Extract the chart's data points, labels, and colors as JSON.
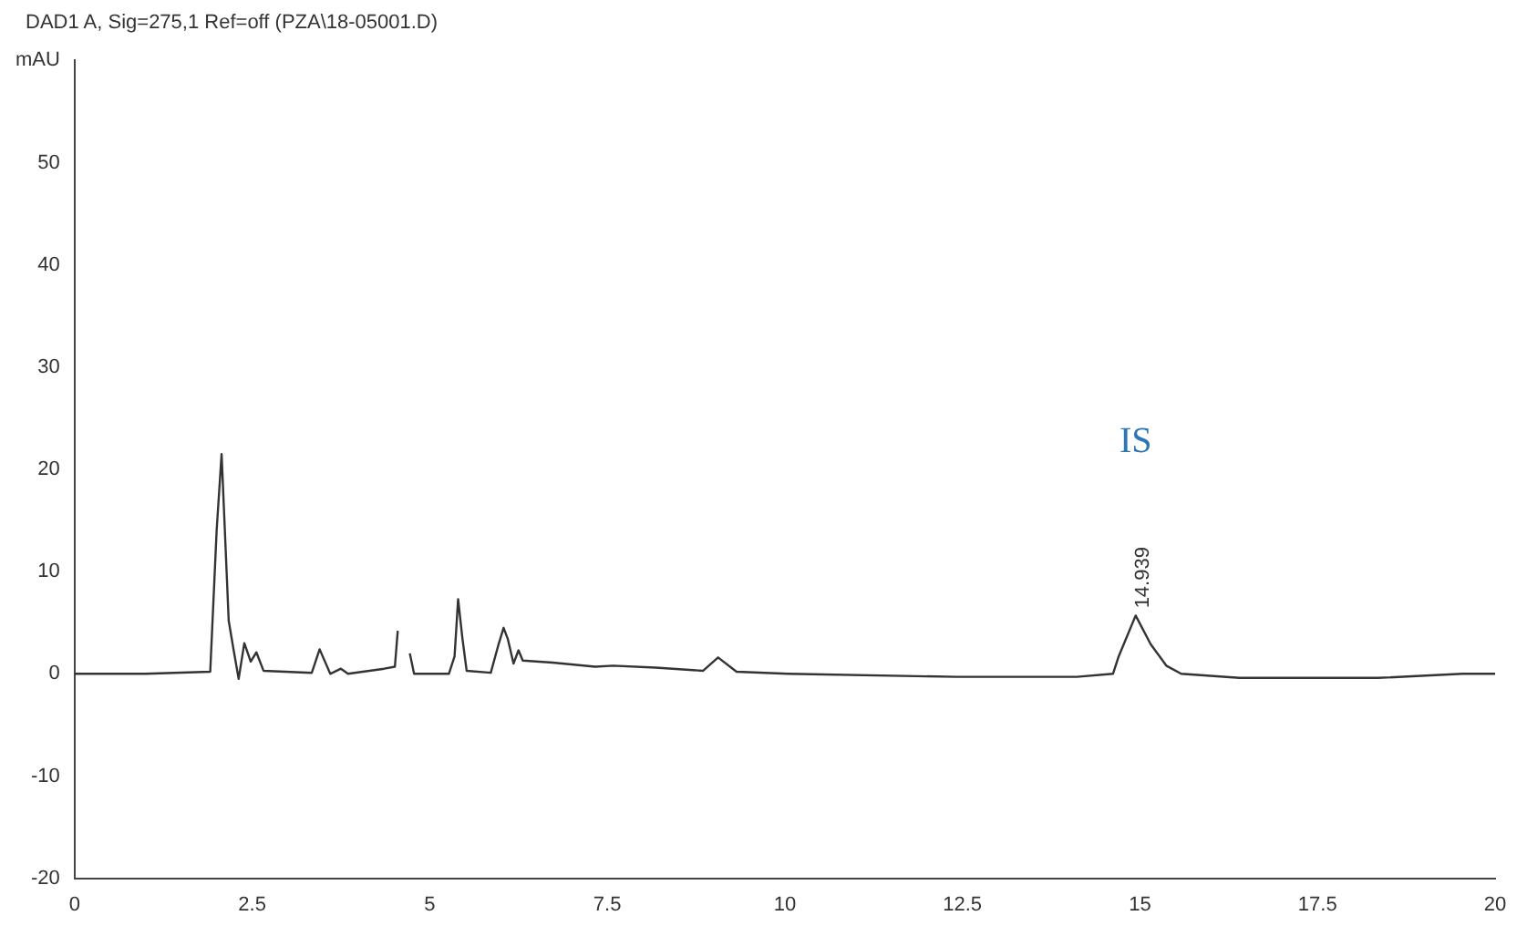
{
  "chart_data": {
    "type": "line",
    "title": "DAD1 A, Sig=275,1 Ref=off (PZA\\18-05001.D)",
    "ylabel": "mAU",
    "x": [
      0,
      1.0,
      1.91,
      2.0,
      2.07,
      2.17,
      2.24,
      2.31,
      2.39,
      2.48,
      2.56,
      2.66,
      3.34,
      3.45,
      3.6,
      3.75,
      3.85,
      4.36,
      4.51,
      4.55,
      4.57,
      4.66,
      4.72,
      4.78,
      5.27,
      5.35,
      5.4,
      5.46,
      5.52,
      5.86,
      5.97,
      6.04,
      6.1,
      6.18,
      6.25,
      6.31,
      6.73,
      7.33,
      7.58,
      8.18,
      8.85,
      9.06,
      9.32,
      10.04,
      12.42,
      14.11,
      14.62,
      14.7,
      14.939,
      15.15,
      15.37,
      15.58,
      16.4,
      18.35,
      19.54,
      20
    ],
    "series": [
      {
        "color": "#333333",
        "values": [
          0,
          0,
          0.2,
          14,
          21.5,
          5.2,
          2.3,
          -0.5,
          3.0,
          1.2,
          2.1,
          0.3,
          0.1,
          2.4,
          0,
          0.5,
          0,
          0.5,
          0.7,
          4.2,
          null,
          null,
          2,
          0,
          0,
          1.7,
          7.3,
          3.5,
          0.3,
          0.1,
          2.9,
          4.5,
          3.4,
          1.0,
          2.3,
          1.3,
          1.1,
          0.7,
          0.8,
          0.6,
          0.3,
          1.6,
          0.2,
          0,
          -0.3,
          -0.3,
          0,
          1.7,
          5.7,
          2.9,
          0.8,
          0,
          -0.4,
          -0.4,
          0,
          0
        ]
      }
    ],
    "xlim": [
      0,
      20
    ],
    "xticks": [
      0,
      2.5,
      5,
      7.5,
      10,
      12.5,
      15,
      17.5,
      20
    ],
    "ylim": [
      -20,
      60
    ],
    "yticks": [
      -20,
      -10,
      0,
      10,
      20,
      30,
      40,
      50
    ],
    "annotations": [
      "IS",
      {
        "text": "14.939",
        "x": 14.939,
        "y": 5.7
      }
    ],
    "grid": false,
    "legend": false,
    "marker": "none",
    "line_style": "solid"
  }
}
